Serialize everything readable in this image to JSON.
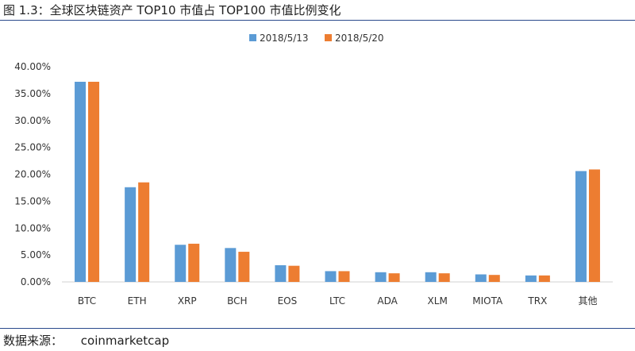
{
  "header": {
    "title": "图 1.3：全球区块链资产 TOP10 市值占 TOP100 市值比例变化"
  },
  "footer": {
    "source_label": "数据来源：",
    "source_value": "coinmarketcap"
  },
  "chart_data": {
    "type": "bar",
    "title": "",
    "xlabel": "",
    "ylabel": "",
    "categories": [
      "BTC",
      "ETH",
      "XRP",
      "BCH",
      "EOS",
      "LTC",
      "ADA",
      "XLM",
      "MIOTA",
      "TRX",
      "其他"
    ],
    "series": [
      {
        "name": "2018/5/13",
        "color": "#5b9bd5",
        "values": [
          37.2,
          17.6,
          6.9,
          6.3,
          3.1,
          2.0,
          1.8,
          1.8,
          1.4,
          1.2,
          20.6
        ]
      },
      {
        "name": "2018/5/20",
        "color": "#ed7d31",
        "values": [
          37.2,
          18.5,
          7.1,
          5.6,
          3.0,
          2.0,
          1.6,
          1.6,
          1.3,
          1.2,
          20.9
        ]
      }
    ],
    "ylim": [
      0,
      40
    ],
    "yticks": [
      "0.00%",
      "5.00%",
      "10.00%",
      "15.00%",
      "20.00%",
      "25.00%",
      "30.00%",
      "35.00%",
      "40.00%"
    ],
    "grid": false,
    "legend_position": "top"
  }
}
